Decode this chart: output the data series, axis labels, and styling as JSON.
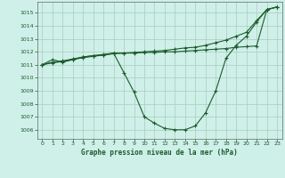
{
  "background_color": "#cef0e8",
  "grid_color": "#aaccbb",
  "line_color": "#1a5c2a",
  "title": "Graphe pression niveau de la mer (hPa)",
  "xlim": [
    -0.5,
    23.5
  ],
  "ylim": [
    1005.3,
    1015.85
  ],
  "yticks": [
    1006,
    1007,
    1008,
    1009,
    1010,
    1011,
    1012,
    1013,
    1014,
    1015
  ],
  "xticks": [
    0,
    1,
    2,
    3,
    4,
    5,
    6,
    7,
    8,
    9,
    10,
    11,
    12,
    13,
    14,
    15,
    16,
    17,
    18,
    19,
    20,
    21,
    22,
    23
  ],
  "series1_x": [
    0,
    1,
    2,
    3,
    4,
    5,
    6,
    7,
    8,
    9,
    10,
    11,
    12,
    13,
    14,
    15,
    16,
    17,
    18,
    19,
    20,
    21,
    22,
    23
  ],
  "series1_y": [
    1011.0,
    1011.4,
    1011.2,
    1011.4,
    1011.6,
    1011.7,
    1011.8,
    1011.9,
    1010.4,
    1008.9,
    1007.0,
    1006.5,
    1006.1,
    1006.0,
    1006.0,
    1006.3,
    1007.3,
    1009.0,
    1011.5,
    1012.5,
    1013.2,
    1014.3,
    1015.25,
    1015.45
  ],
  "series2_x": [
    0,
    1,
    2,
    3,
    4,
    5,
    6,
    7,
    8,
    9,
    10,
    11,
    12,
    13,
    14,
    15,
    16,
    17,
    18,
    19,
    20,
    21,
    22,
    23
  ],
  "series2_y": [
    1011.0,
    1011.2,
    1011.3,
    1011.45,
    1011.6,
    1011.7,
    1011.75,
    1011.9,
    1011.9,
    1011.9,
    1011.95,
    1011.95,
    1012.0,
    1012.0,
    1012.05,
    1012.1,
    1012.15,
    1012.2,
    1012.25,
    1012.35,
    1012.4,
    1012.45,
    1015.25,
    1015.45
  ],
  "series3_x": [
    0,
    1,
    2,
    3,
    4,
    5,
    6,
    7,
    8,
    9,
    10,
    11,
    12,
    13,
    14,
    15,
    16,
    17,
    18,
    19,
    20,
    21,
    22,
    23
  ],
  "series3_y": [
    1011.0,
    1011.15,
    1011.25,
    1011.4,
    1011.55,
    1011.65,
    1011.75,
    1011.85,
    1011.9,
    1011.95,
    1012.0,
    1012.05,
    1012.1,
    1012.2,
    1012.3,
    1012.35,
    1012.5,
    1012.7,
    1012.9,
    1013.2,
    1013.5,
    1014.4,
    1015.25,
    1015.45
  ]
}
